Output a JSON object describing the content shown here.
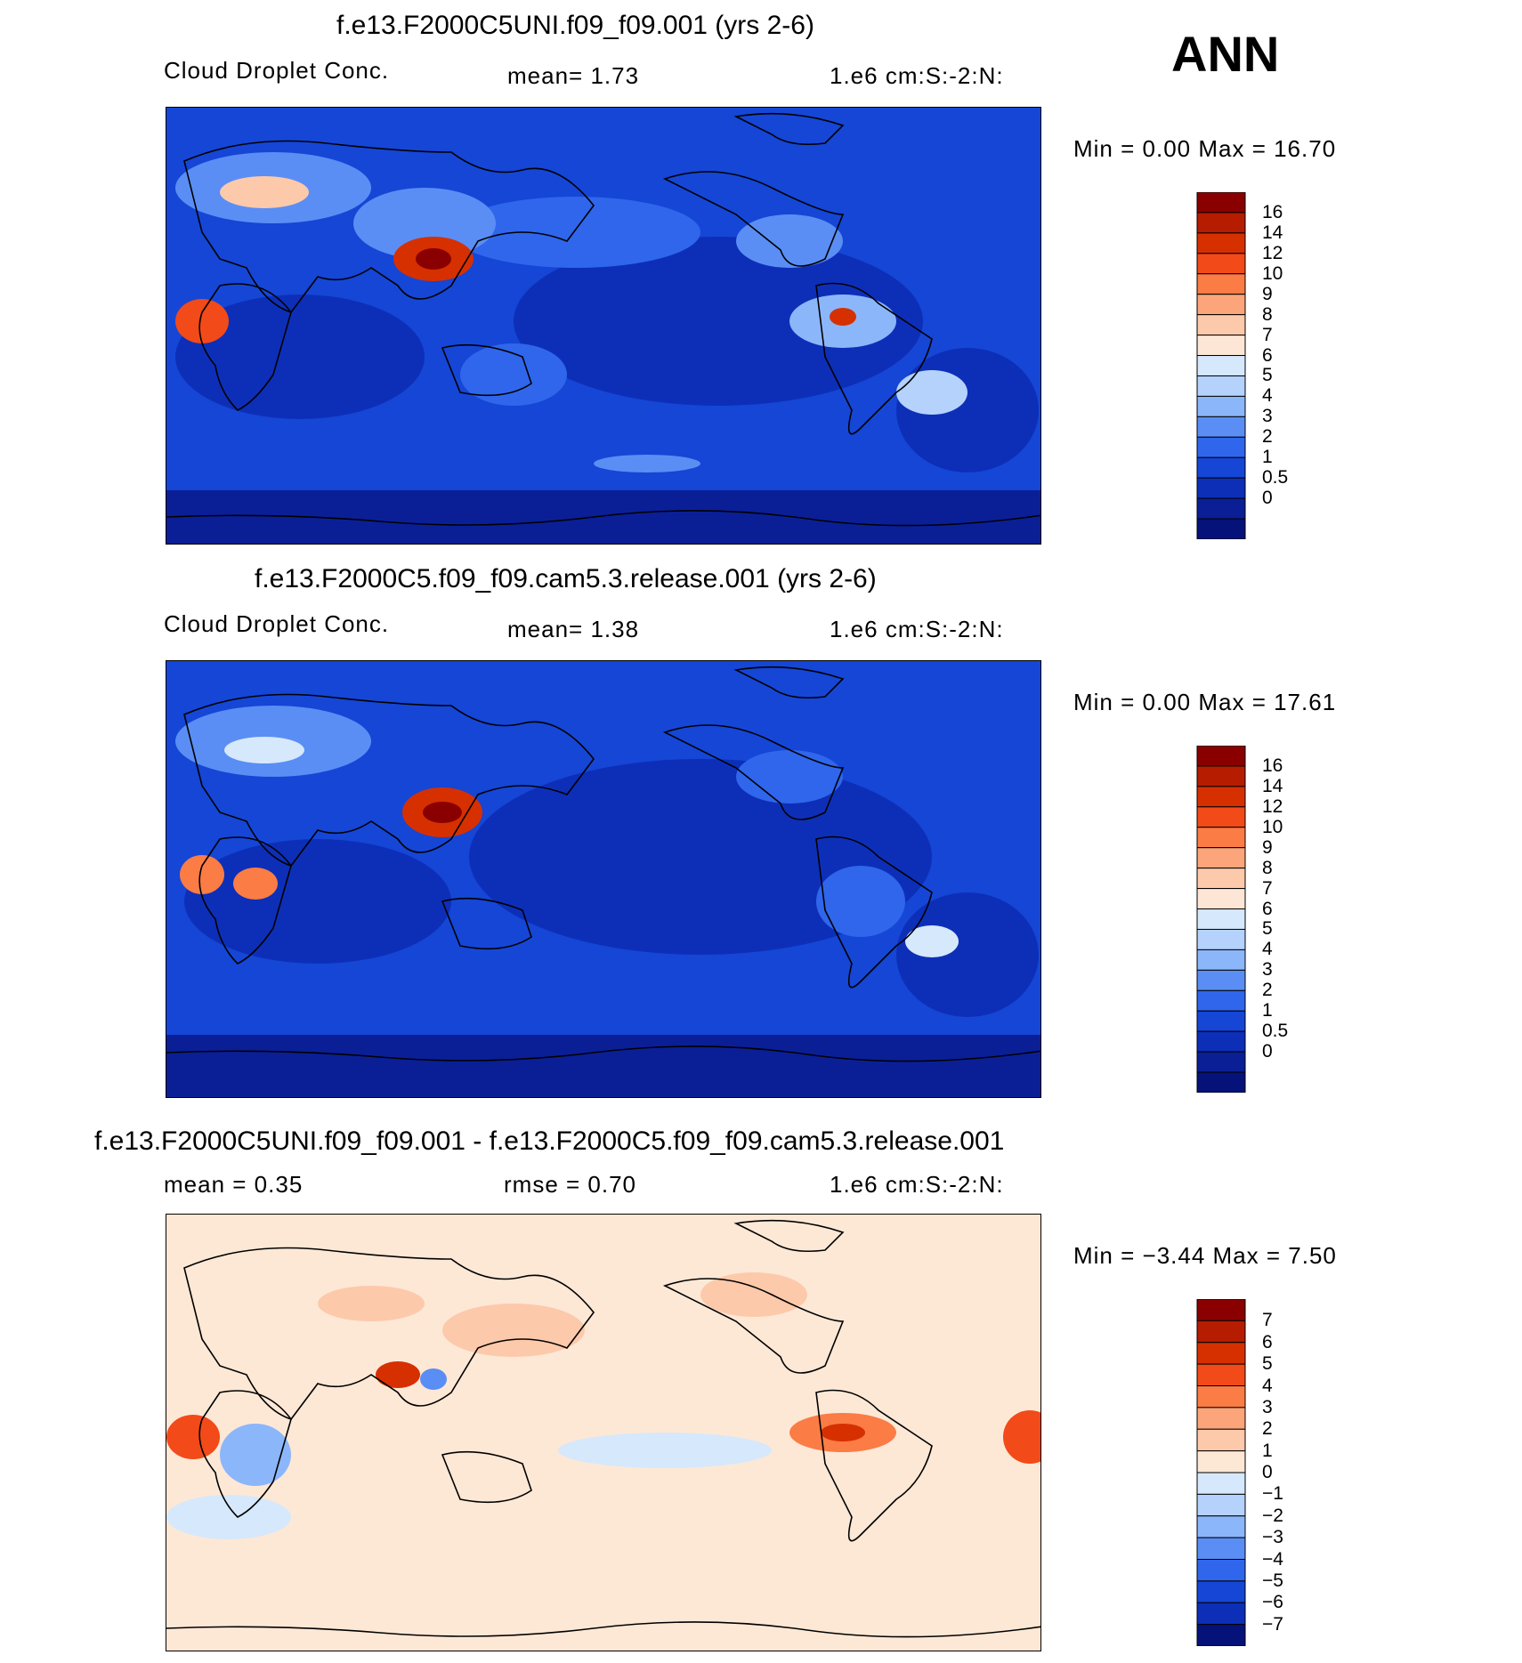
{
  "season": "ANN",
  "panels": [
    {
      "title": "f.e13.F2000C5UNI.f09_f09.001 (yrs 2-6)",
      "variable": "Cloud Droplet Conc.",
      "stat": "mean=     1.73",
      "units": "1.e6 cm:S:-2:N:",
      "minmax": "Min =     0.00 Max =    16.70",
      "legend_labels": [
        "16",
        "14",
        "12",
        "10",
        "9",
        "8",
        "7",
        "6",
        "5",
        "4",
        "3",
        "2",
        "1",
        "0.5",
        "0"
      ],
      "legend_colors": [
        "#8a0000",
        "#b51c00",
        "#d63000",
        "#f24a18",
        "#fb7c45",
        "#fca57a",
        "#fdc9ab",
        "#fde6d6",
        "#d6e8fb",
        "#b4d2fb",
        "#8cb6fa",
        "#5a8ef4",
        "#2f66ec",
        "#1546d6",
        "#0d2fb8",
        "#0a1f96",
        "#05127a"
      ]
    },
    {
      "title": "f.e13.F2000C5.f09_f09.cam5.3.release.001 (yrs 2-6)",
      "variable": "Cloud Droplet Conc.",
      "stat": "mean=     1.38",
      "units": "1.e6 cm:S:-2:N:",
      "minmax": "Min =     0.00 Max =    17.61",
      "legend_labels": [
        "16",
        "14",
        "12",
        "10",
        "9",
        "8",
        "7",
        "6",
        "5",
        "4",
        "3",
        "2",
        "1",
        "0.5",
        "0"
      ],
      "legend_colors": [
        "#8a0000",
        "#b51c00",
        "#d63000",
        "#f24a18",
        "#fb7c45",
        "#fca57a",
        "#fdc9ab",
        "#fde6d6",
        "#d6e8fb",
        "#b4d2fb",
        "#8cb6fa",
        "#5a8ef4",
        "#2f66ec",
        "#1546d6",
        "#0d2fb8",
        "#0a1f96",
        "#05127a"
      ]
    },
    {
      "title": "f.e13.F2000C5UNI.f09_f09.001 - f.e13.F2000C5.f09_f09.cam5.3.release.001",
      "stat": "mean =     0.35",
      "stat2": "rmse =     0.70",
      "units": "1.e6 cm:S:-2:N:",
      "minmax": "Min =   −3.44 Max =     7.50",
      "legend_labels": [
        "7",
        "6",
        "5",
        "4",
        "3",
        "2",
        "1",
        "0",
        "−1",
        "−2",
        "−3",
        "−4",
        "−5",
        "−6",
        "−7"
      ],
      "legend_colors": [
        "#8a0000",
        "#b51c00",
        "#d63000",
        "#f24a18",
        "#fb7c45",
        "#fca57a",
        "#fdc9ab",
        "#fde8d6",
        "#d6e8fb",
        "#b4d2fb",
        "#8cb6fa",
        "#5a8ef4",
        "#2f66ec",
        "#1546d6",
        "#0d2fb8",
        "#05127a"
      ]
    }
  ]
}
